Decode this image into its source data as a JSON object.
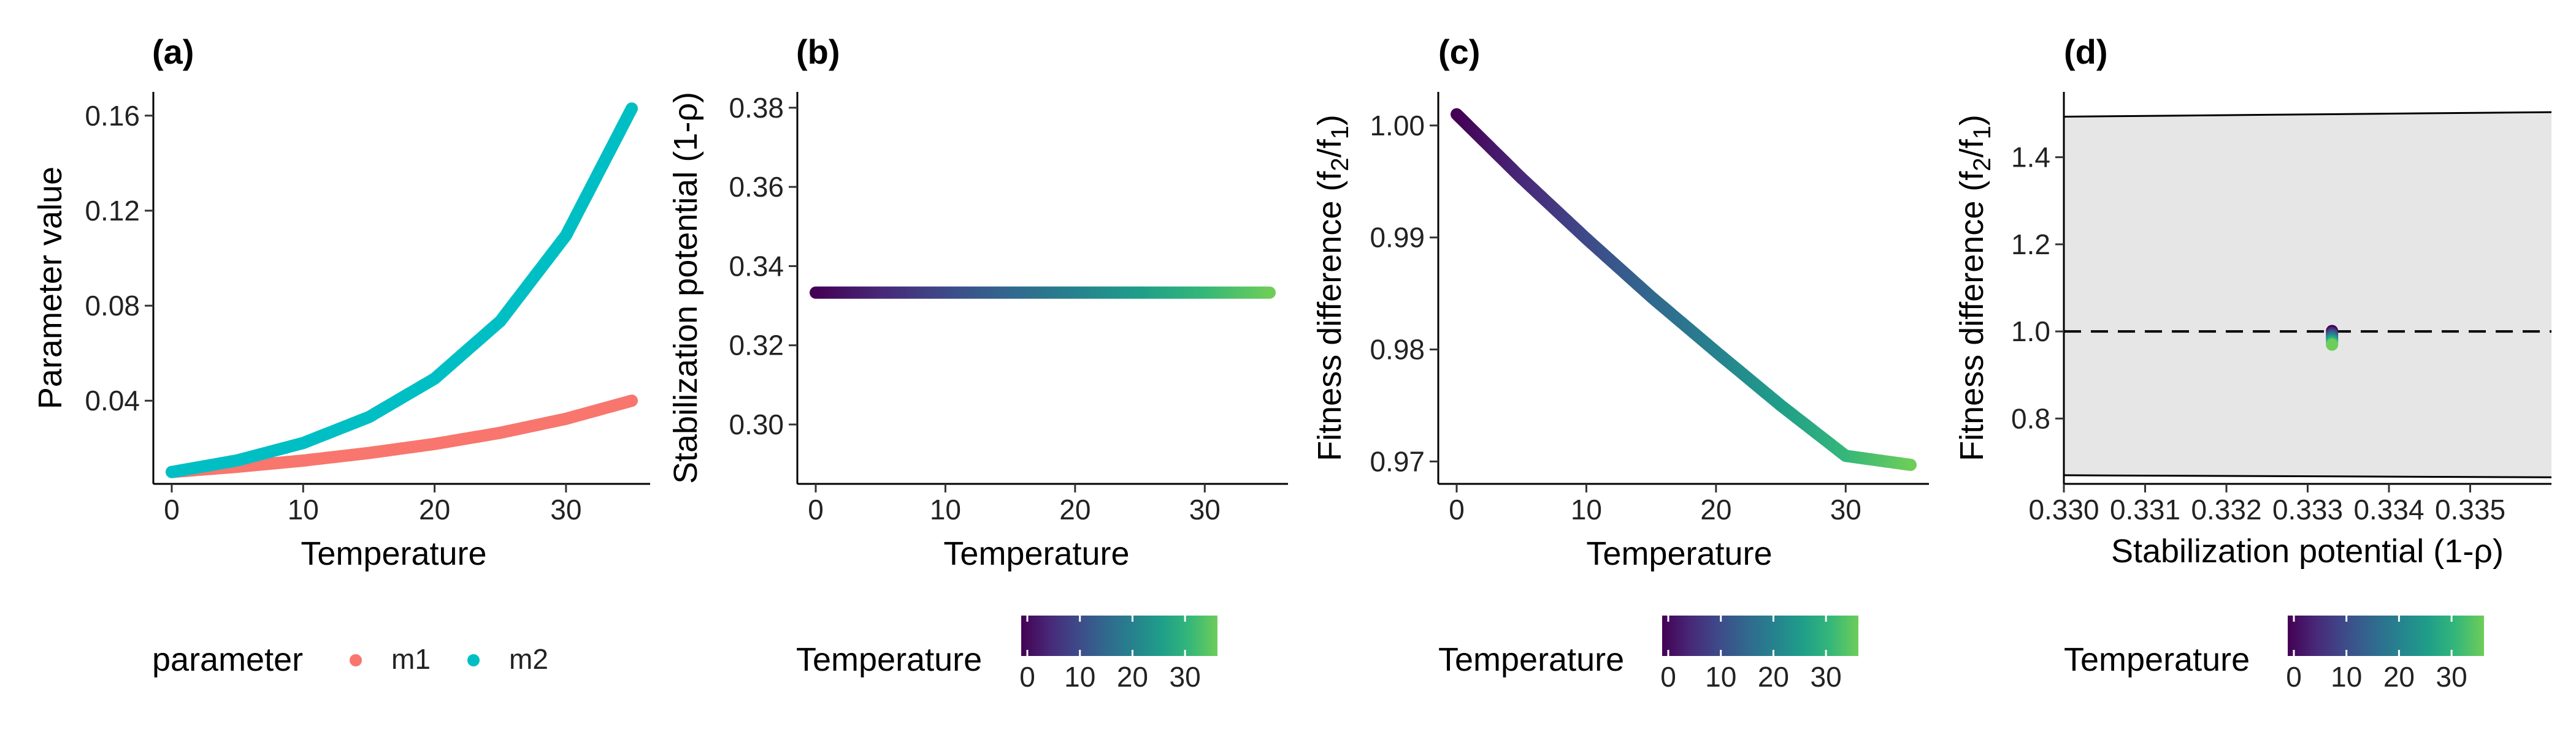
{
  "chart_data": [
    {
      "panel": "(a)",
      "type": "line",
      "xlabel": "Temperature",
      "ylabel": "Parameter value",
      "xlim": [
        0,
        35
      ],
      "ylim": [
        0.005,
        0.17
      ],
      "xticks": [
        0,
        10,
        20,
        30
      ],
      "yticks": [
        0.04,
        0.08,
        0.12,
        0.16
      ],
      "ytick_labels": [
        "0.04",
        "0.08",
        "0.12",
        "0.16"
      ],
      "x": [
        0,
        5,
        10,
        15,
        20,
        25,
        30,
        35
      ],
      "series": [
        {
          "name": "m1",
          "color": "#F8766D",
          "values": [
            0.01,
            0.0122,
            0.0148,
            0.018,
            0.0218,
            0.0265,
            0.0324,
            0.04
          ]
        },
        {
          "name": "m2",
          "color": "#00BFC4",
          "values": [
            0.01,
            0.0149,
            0.0222,
            0.0331,
            0.0493,
            0.0735,
            0.1096,
            0.163
          ]
        }
      ],
      "legend": {
        "title": "parameter",
        "position": "bottom",
        "items": [
          "m1",
          "m2"
        ]
      },
      "grid": false
    },
    {
      "panel": "(b)",
      "type": "line",
      "xlabel": "Temperature",
      "ylabel": "Stabilization potential (1-ρ)",
      "xlim": [
        0,
        35
      ],
      "ylim": [
        0.285,
        0.384
      ],
      "xticks": [
        0,
        10,
        20,
        30
      ],
      "yticks": [
        0.3,
        0.32,
        0.34,
        0.36,
        0.38
      ],
      "ytick_labels": [
        "0.30",
        "0.32",
        "0.34",
        "0.36",
        "0.38"
      ],
      "x": [
        0,
        35
      ],
      "y": [
        0.3333,
        0.3333
      ],
      "color_by": "Temperature",
      "legend": {
        "title": "Temperature",
        "position": "bottom",
        "ticks": [
          0,
          10,
          20,
          30
        ]
      },
      "grid": false
    },
    {
      "panel": "(c)",
      "type": "line",
      "xlabel": "Temperature",
      "ylabel": "Fitness difference (f",
      "ylabel_sub1": "2",
      "ylabel_mid": "/f",
      "ylabel_sub2": "1",
      "ylabel_end": ")",
      "xlim": [
        0,
        35
      ],
      "ylim": [
        0.968,
        1.003
      ],
      "xticks": [
        0,
        10,
        20,
        30
      ],
      "yticks": [
        0.97,
        0.98,
        0.99,
        1.0
      ],
      "ytick_labels": [
        "0.97",
        "0.98",
        "0.99",
        "1.00"
      ],
      "x": [
        0,
        5,
        10,
        15,
        20,
        25,
        30,
        35
      ],
      "y": [
        1.001,
        0.9953,
        0.9899,
        0.9847,
        0.9798,
        0.975,
        0.9705,
        0.9697
      ],
      "color_by": "Temperature",
      "legend": {
        "title": "Temperature",
        "position": "bottom",
        "ticks": [
          0,
          10,
          20,
          30
        ]
      },
      "grid": false
    },
    {
      "panel": "(d)",
      "type": "scatter",
      "xlabel": "Stabilization potential (1-ρ)",
      "ylabel": "Fitness difference (f",
      "ylabel_sub1": "2",
      "ylabel_mid": "/f",
      "ylabel_sub2": "1",
      "ylabel_end": ")",
      "xlim": [
        0.33,
        0.336
      ],
      "ylim": [
        0.65,
        1.55
      ],
      "xticks": [
        0.33,
        0.331,
        0.332,
        0.333,
        0.334,
        0.335
      ],
      "xtick_labels": [
        "0.330",
        "0.331",
        "0.332",
        "0.333",
        "0.334",
        "0.335"
      ],
      "yticks": [
        0.8,
        1.0,
        1.2,
        1.4
      ],
      "ytick_labels": [
        "0.8",
        "1.0",
        "1.2",
        "1.4"
      ],
      "coexistence_region": {
        "x": [
          0.33,
          0.336
        ],
        "upper": [
          1.493,
          1.5035
        ],
        "lower": [
          0.6698,
          0.6651
        ]
      },
      "reference_line_y": 1.0,
      "points": {
        "x": 0.3333,
        "y_range": [
          0.9697,
          1.001
        ]
      },
      "color_by": "Temperature",
      "legend": {
        "title": "Temperature",
        "position": "bottom",
        "ticks": [
          0,
          10,
          20,
          30
        ]
      },
      "grid": false
    }
  ],
  "colorbar_colors": [
    "#440154",
    "#482878",
    "#3E4A89",
    "#31688E",
    "#26828E",
    "#1F9E89",
    "#35B779",
    "#6DCD59"
  ]
}
